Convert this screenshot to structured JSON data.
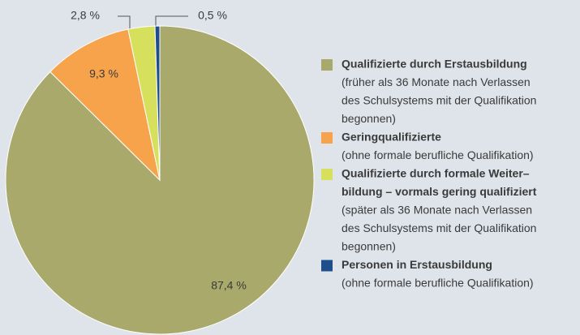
{
  "chart_data": {
    "type": "pie",
    "categories": [
      [
        "Qualifizierte durch Erstausbildung"
      ],
      [
        "Geringqualifizierte"
      ],
      [
        "Qualifizierte durch formale Weiter–",
        "bildung – vormals gering qualifiziert"
      ],
      [
        "Personen in Erstausbildung"
      ]
    ],
    "descriptions": [
      [
        "(früher als 36 Monate nach Verlassen",
        "des Schulsystems mit der Qualifikation",
        "begonnen)"
      ],
      [
        "(ohne formale berufliche Qualifikation)"
      ],
      [
        "(später als 36 Monate nach Verlassen",
        "des Schulsystems mit der Qualifikation",
        "begonnen)"
      ],
      [
        "(ohne formale berufliche Qualifikation)"
      ]
    ],
    "values": [
      87.4,
      9.3,
      2.8,
      0.5
    ],
    "value_labels": [
      "87,4 %",
      "9,3 %",
      "2,8 %",
      "0,5 %"
    ],
    "colors": [
      "#a9a96b",
      "#f6a34b",
      "#d7e05c",
      "#1f4e8c"
    ],
    "legend": "right"
  }
}
